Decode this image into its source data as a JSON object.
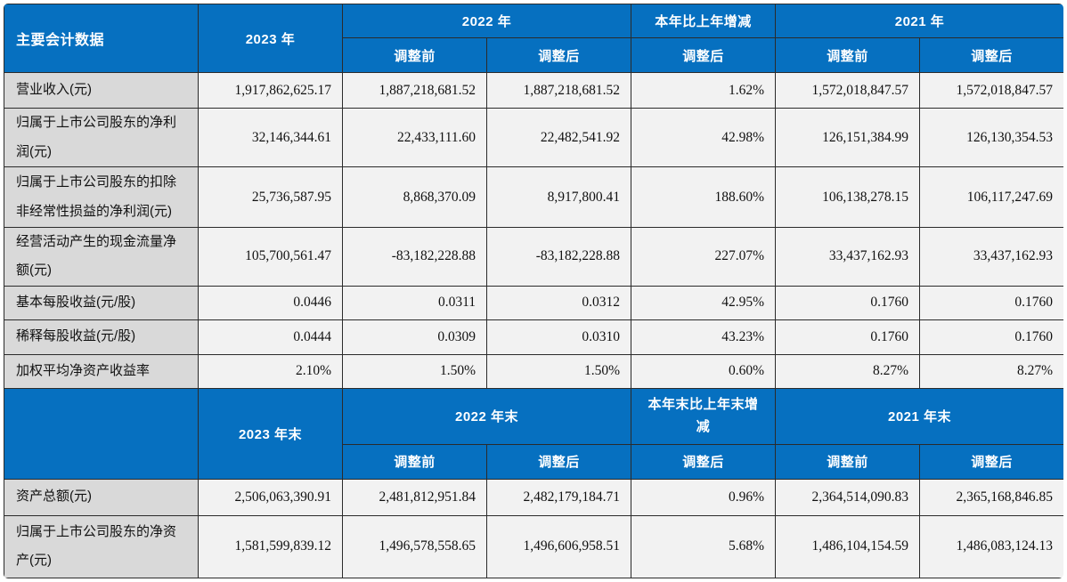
{
  "colors": {
    "header_bg": "#0670C0",
    "header_text": "#ffffff",
    "label_bg": "#D9D9D9",
    "value_bg": "#F2F2F2",
    "border": "#2b2b2b"
  },
  "section1": {
    "header": {
      "title": "主要会计数据",
      "year_2023": "2023 年",
      "year_2022": "2022 年",
      "change": "本年比上年增减",
      "year_2021": "2021 年",
      "sub_2022_before": "调整前",
      "sub_2022_after": "调整后",
      "sub_change_after": "调整后",
      "sub_2021_before": "调整前",
      "sub_2021_after": "调整后"
    },
    "rows": [
      {
        "label": "营业收入(元)",
        "values": [
          "1,917,862,625.17",
          "1,887,218,681.52",
          "1,887,218,681.52",
          "1.62%",
          "1,572,018,847.57",
          "1,572,018,847.57"
        ]
      },
      {
        "label": "归属于上市公司股东的净利润(元)",
        "values": [
          "32,146,344.61",
          "22,433,111.60",
          "22,482,541.92",
          "42.98%",
          "126,151,384.99",
          "126,130,354.53"
        ]
      },
      {
        "label": "归属于上市公司股东的扣除非经常性损益的净利润(元)",
        "values": [
          "25,736,587.95",
          "8,868,370.09",
          "8,917,800.41",
          "188.60%",
          "106,138,278.15",
          "106,117,247.69"
        ]
      },
      {
        "label": "经营活动产生的现金流量净额(元)",
        "values": [
          "105,700,561.47",
          "-83,182,228.88",
          "-83,182,228.88",
          "227.07%",
          "33,437,162.93",
          "33,437,162.93"
        ]
      },
      {
        "label": "基本每股收益(元/股)",
        "values": [
          "0.0446",
          "0.0311",
          "0.0312",
          "42.95%",
          "0.1760",
          "0.1760"
        ]
      },
      {
        "label": "稀释每股收益(元/股)",
        "values": [
          "0.0444",
          "0.0309",
          "0.0310",
          "43.23%",
          "0.1760",
          "0.1760"
        ]
      },
      {
        "label": "加权平均净资产收益率",
        "values": [
          "2.10%",
          "1.50%",
          "1.50%",
          "0.60%",
          "8.27%",
          "8.27%"
        ]
      }
    ]
  },
  "section2": {
    "header": {
      "title": "",
      "year_2023": "2023 年末",
      "year_2022": "2022 年末",
      "change": "本年末比上年末增减",
      "year_2021": "2021 年末",
      "sub_2022_before": "调整前",
      "sub_2022_after": "调整后",
      "sub_change_after": "调整后",
      "sub_2021_before": "调整前",
      "sub_2021_after": "调整后"
    },
    "rows": [
      {
        "label": "资产总额(元)",
        "values": [
          "2,506,063,390.91",
          "2,481,812,951.84",
          "2,482,179,184.71",
          "0.96%",
          "2,364,514,090.83",
          "2,365,168,846.85"
        ]
      },
      {
        "label": "归属于上市公司股东的净资产(元)",
        "values": [
          "1,581,599,839.12",
          "1,496,578,558.65",
          "1,496,606,958.51",
          "5.68%",
          "1,486,104,154.59",
          "1,486,083,124.13"
        ]
      }
    ]
  }
}
